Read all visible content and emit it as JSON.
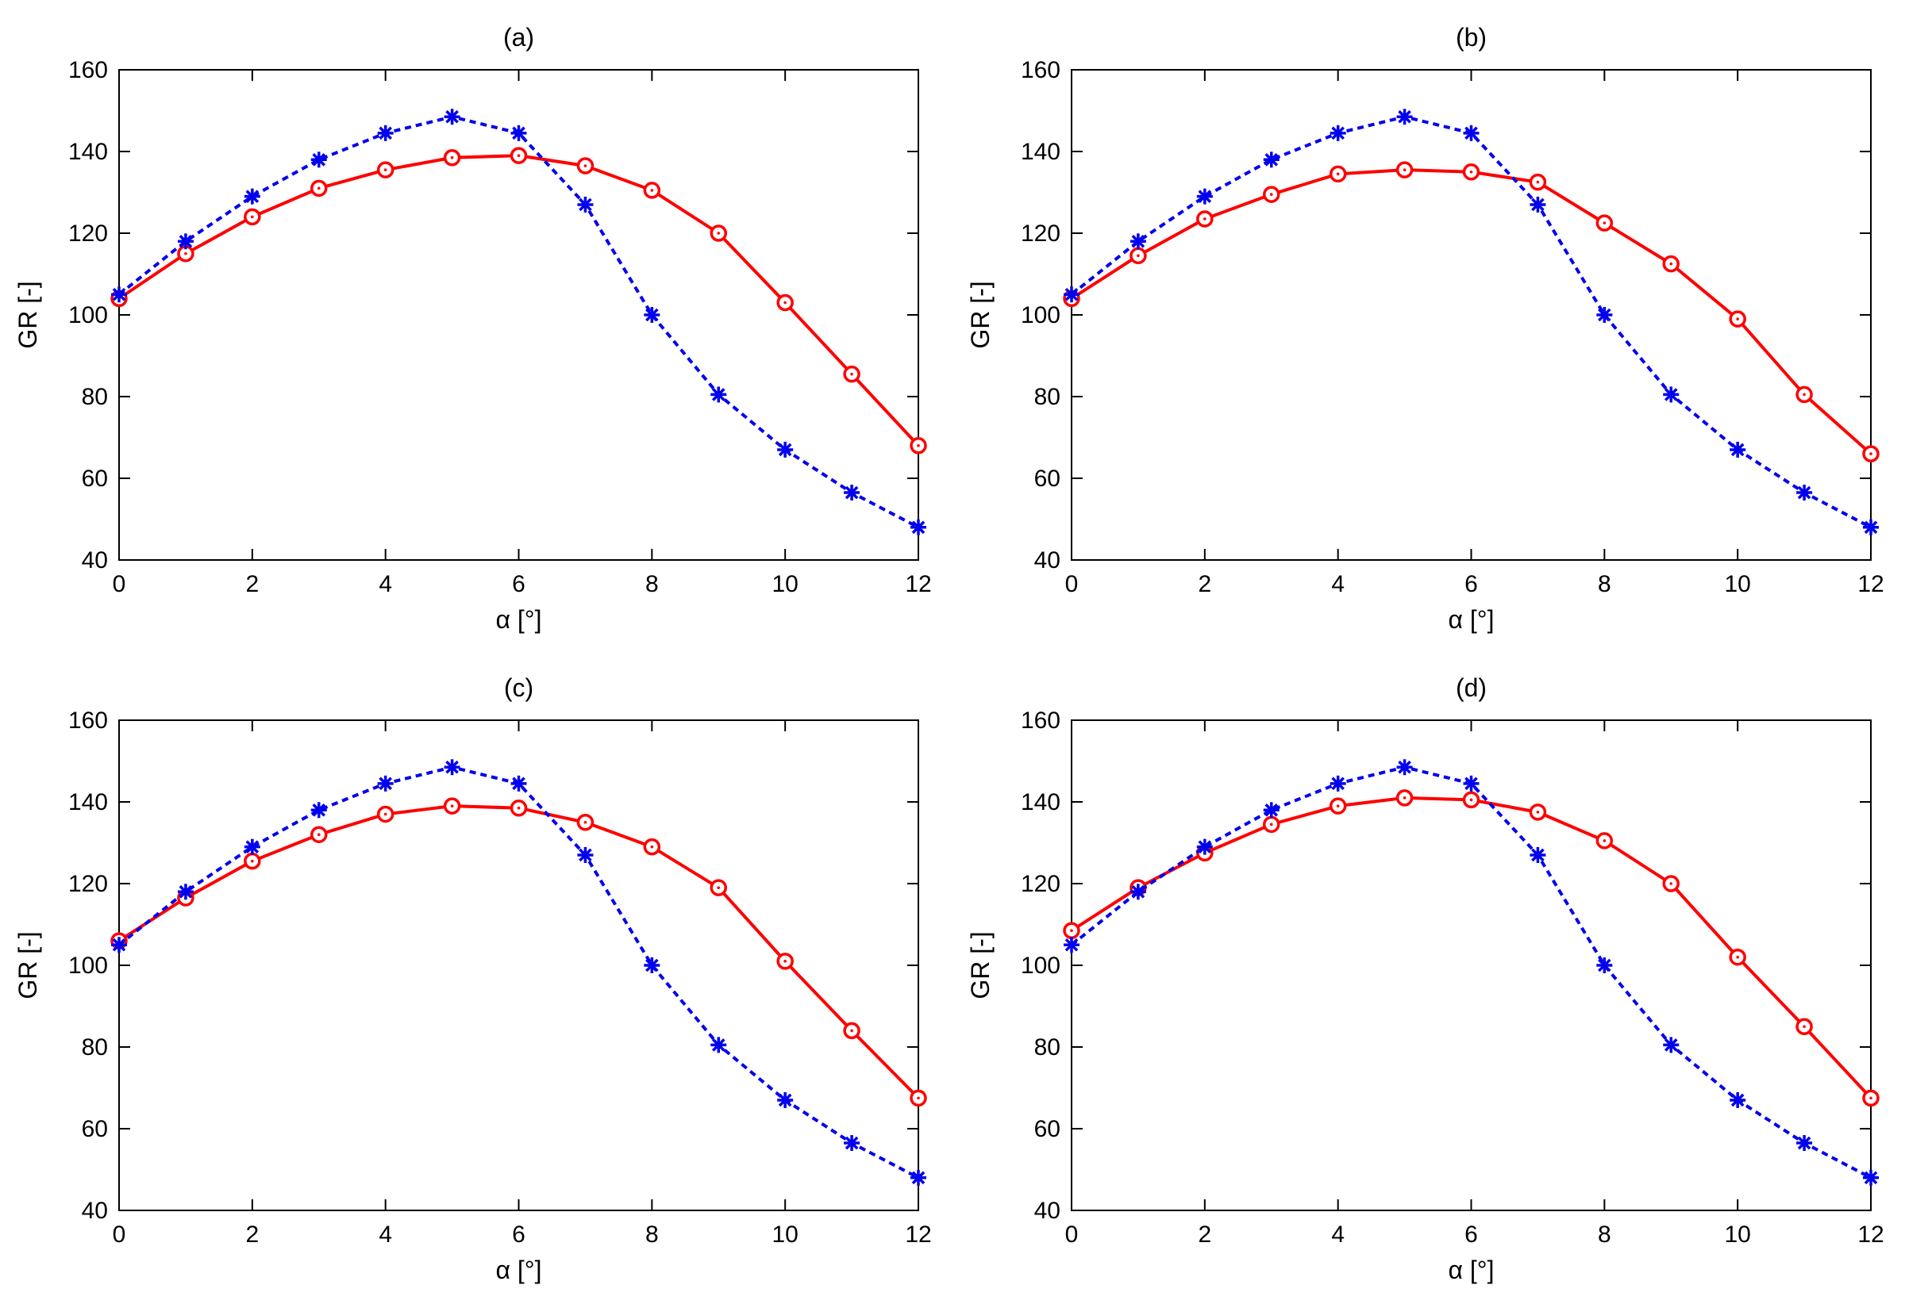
{
  "chart_data": [
    {
      "type": "line",
      "title": "(a)",
      "xlabel": "α [°]",
      "ylabel": "GR [-]",
      "xlim": [
        0,
        12
      ],
      "ylim": [
        40,
        160
      ],
      "xticks": [
        0,
        2,
        4,
        6,
        8,
        10,
        12
      ],
      "yticks": [
        40,
        60,
        80,
        100,
        120,
        140,
        160
      ],
      "grid": false,
      "legend": "none",
      "x": [
        0,
        1,
        2,
        3,
        4,
        5,
        6,
        7,
        8,
        9,
        10,
        11,
        12
      ],
      "series": [
        {
          "color": "#ff0000",
          "line": "solid",
          "marker": "circle",
          "values": [
            104,
            115,
            124,
            131,
            135.5,
            138.5,
            139,
            136.5,
            130.5,
            120,
            103,
            85.5,
            68
          ]
        },
        {
          "color": "#0000ee",
          "line": "dotted",
          "marker": "asterisk",
          "values": [
            105,
            118,
            129,
            138,
            144.5,
            148.5,
            144.5,
            127,
            100,
            80.5,
            67,
            56.5,
            48
          ]
        }
      ]
    },
    {
      "type": "line",
      "title": "(b)",
      "xlabel": "α [°]",
      "ylabel": "GR [-]",
      "xlim": [
        0,
        12
      ],
      "ylim": [
        40,
        160
      ],
      "xticks": [
        0,
        2,
        4,
        6,
        8,
        10,
        12
      ],
      "yticks": [
        40,
        60,
        80,
        100,
        120,
        140,
        160
      ],
      "grid": false,
      "legend": "none",
      "x": [
        0,
        1,
        2,
        3,
        4,
        5,
        6,
        7,
        8,
        9,
        10,
        11,
        12
      ],
      "series": [
        {
          "color": "#ff0000",
          "line": "solid",
          "marker": "circle",
          "values": [
            104,
            114.5,
            123.5,
            129.5,
            134.5,
            135.5,
            135,
            132.5,
            122.5,
            112.5,
            99,
            80.5,
            66
          ]
        },
        {
          "color": "#0000ee",
          "line": "dotted",
          "marker": "asterisk",
          "values": [
            105,
            118,
            129,
            138,
            144.5,
            148.5,
            144.5,
            127,
            100,
            80.5,
            67,
            56.5,
            48
          ]
        }
      ]
    },
    {
      "type": "line",
      "title": "(c)",
      "xlabel": "α [°]",
      "ylabel": "GR [-]",
      "xlim": [
        0,
        12
      ],
      "ylim": [
        40,
        160
      ],
      "xticks": [
        0,
        2,
        4,
        6,
        8,
        10,
        12
      ],
      "yticks": [
        40,
        60,
        80,
        100,
        120,
        140,
        160
      ],
      "grid": false,
      "legend": "none",
      "x": [
        0,
        1,
        2,
        3,
        4,
        5,
        6,
        7,
        8,
        9,
        10,
        11,
        12
      ],
      "series": [
        {
          "color": "#ff0000",
          "line": "solid",
          "marker": "circle",
          "values": [
            106,
            116.5,
            125.5,
            132,
            137,
            139,
            138.5,
            135,
            129,
            119,
            101,
            84,
            67.5
          ]
        },
        {
          "color": "#0000ee",
          "line": "dotted",
          "marker": "asterisk",
          "values": [
            105,
            118,
            129,
            138,
            144.5,
            148.5,
            144.5,
            127,
            100,
            80.5,
            67,
            56.5,
            48
          ]
        }
      ]
    },
    {
      "type": "line",
      "title": "(d)",
      "xlabel": "α [°]",
      "ylabel": "GR [-]",
      "xlim": [
        0,
        12
      ],
      "ylim": [
        40,
        160
      ],
      "xticks": [
        0,
        2,
        4,
        6,
        8,
        10,
        12
      ],
      "yticks": [
        40,
        60,
        80,
        100,
        120,
        140,
        160
      ],
      "grid": false,
      "legend": "none",
      "x": [
        0,
        1,
        2,
        3,
        4,
        5,
        6,
        7,
        8,
        9,
        10,
        11,
        12
      ],
      "series": [
        {
          "color": "#ff0000",
          "line": "solid",
          "marker": "circle",
          "values": [
            108.5,
            119,
            127.5,
            134.5,
            139,
            141,
            140.5,
            137.5,
            130.5,
            120,
            102,
            85,
            67.5
          ]
        },
        {
          "color": "#0000ee",
          "line": "dotted",
          "marker": "asterisk",
          "values": [
            105,
            118,
            129,
            138,
            144.5,
            148.5,
            144.5,
            127,
            100,
            80.5,
            67,
            56.5,
            48
          ]
        }
      ]
    }
  ]
}
